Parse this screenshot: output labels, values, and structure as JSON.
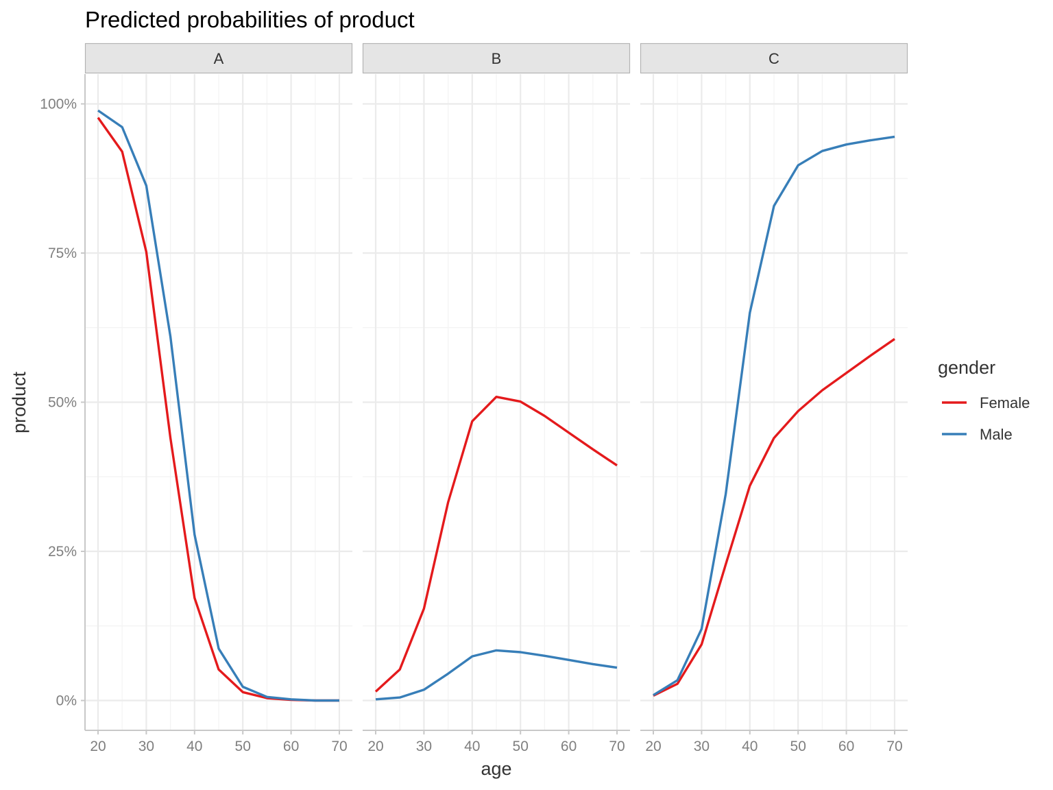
{
  "chart_data": {
    "type": "line",
    "title": "Predicted probabilities of product",
    "xlabel": "age",
    "ylabel": "product",
    "x_ticks": [
      20,
      30,
      40,
      50,
      60,
      70
    ],
    "y_ticks": [
      "0%",
      "25%",
      "50%",
      "75%",
      "100%"
    ],
    "xlim": [
      17.3,
      72.7
    ],
    "ylim": [
      -0.05,
      1.05
    ],
    "grid": true,
    "legend": {
      "title": "gender",
      "position": "right"
    },
    "colors": {
      "Female": "#e41a1c",
      "Male": "#377eb8"
    },
    "x": [
      20,
      25,
      30,
      35,
      40,
      45,
      50,
      55,
      60,
      65,
      70
    ],
    "facets": [
      {
        "label": "A",
        "series": [
          {
            "name": "Female",
            "values": [
              0.977,
              0.92,
              0.752,
              0.44,
              0.172,
              0.052,
              0.014,
              0.004,
              0.001,
              0.0,
              0.0
            ]
          },
          {
            "name": "Male",
            "values": [
              0.989,
              0.961,
              0.863,
              0.61,
              0.278,
              0.087,
              0.023,
              0.006,
              0.002,
              0.0,
              0.0
            ]
          }
        ]
      },
      {
        "label": "B",
        "series": [
          {
            "name": "Female",
            "values": [
              0.015,
              0.052,
              0.154,
              0.332,
              0.468,
              0.509,
              0.501,
              0.477,
              0.449,
              0.421,
              0.394
            ]
          },
          {
            "name": "Male",
            "values": [
              0.002,
              0.005,
              0.018,
              0.045,
              0.074,
              0.084,
              0.081,
              0.075,
              0.068,
              0.061,
              0.055
            ]
          }
        ]
      },
      {
        "label": "C",
        "series": [
          {
            "name": "Female",
            "values": [
              0.008,
              0.028,
              0.094,
              0.228,
              0.36,
              0.44,
              0.485,
              0.52,
              0.549,
              0.578,
              0.606
            ]
          },
          {
            "name": "Male",
            "values": [
              0.009,
              0.034,
              0.12,
              0.346,
              0.65,
              0.829,
              0.897,
              0.921,
              0.932,
              0.939,
              0.945
            ]
          }
        ]
      }
    ]
  }
}
